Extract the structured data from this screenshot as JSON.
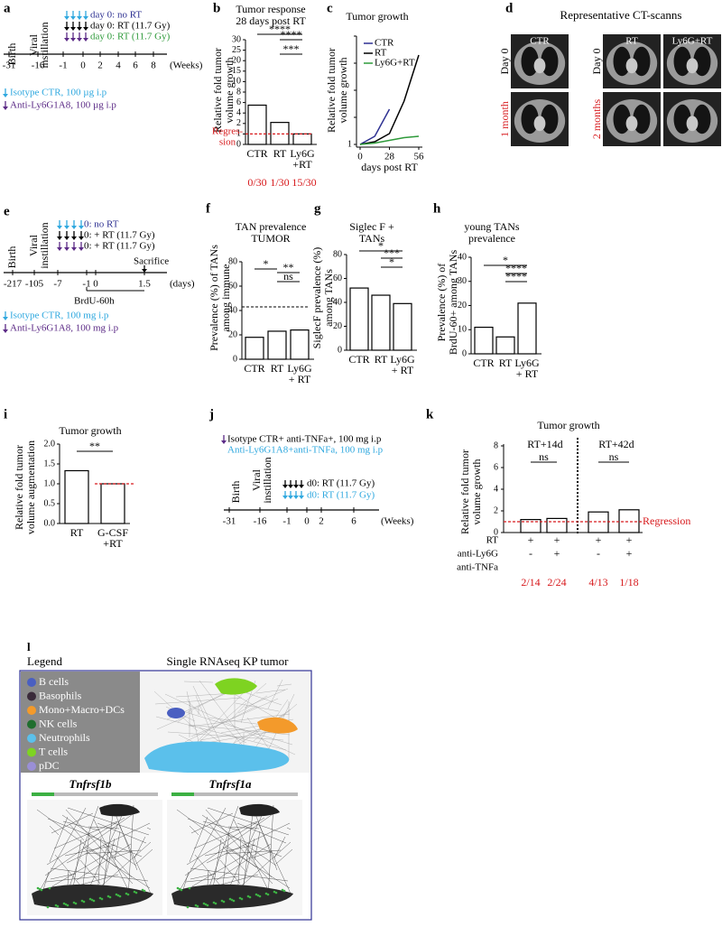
{
  "a": {
    "label": "a",
    "birth": "Birth",
    "viral": [
      "Viral",
      "instillation"
    ],
    "legend": [
      "day 0: no RT",
      "day 0: RT (11.7 Gy)",
      "day 0: RT (11.7 Gy)"
    ],
    "ticks": [
      "-31",
      "-16",
      "-1",
      "0",
      "2",
      "4",
      "6",
      "8"
    ],
    "unit": "(Weeks)",
    "treatments": [
      "Isotype CTR, 100 µg i.p",
      "Anti-Ly6G1A8, 100 µg i.p"
    ]
  },
  "b": {
    "label": "b",
    "title": [
      "Tumor response",
      "28 days post RT"
    ],
    "ylabel": [
      "Relative fold tumor",
      "volume growth"
    ],
    "yticks": [
      0,
      1,
      2,
      4,
      6,
      8,
      10,
      15,
      20,
      25,
      30
    ],
    "categories": [
      "CTR",
      "RT",
      [
        "Ly6G",
        "+RT"
      ]
    ],
    "values": [
      5.5,
      2.2,
      1.0
    ],
    "significance": [
      "****",
      "****",
      "***"
    ],
    "regression": [
      "Regres-",
      "sion"
    ],
    "responders": [
      "0/30",
      "1/30",
      "15/30"
    ]
  },
  "c": {
    "label": "c",
    "title": "Tumor growth",
    "ylabel": [
      "Relative fold tumor",
      "volume growth"
    ],
    "x": [
      0,
      14,
      28,
      42,
      56
    ],
    "xticks": [
      0,
      28,
      56
    ],
    "yticks": [
      1,
      2,
      3,
      4,
      5
    ],
    "xlabel": "days post RT",
    "series": [
      {
        "name": "CTR",
        "color": "#2e3192",
        "values": [
          1,
          1.3,
          2.3,
          null,
          null
        ]
      },
      {
        "name": "RT",
        "color": "#000000",
        "values": [
          1,
          1.1,
          1.4,
          2.6,
          4.3
        ]
      },
      {
        "name": "Ly6G+RT",
        "color": "#2e9a3a",
        "values": [
          1,
          1.05,
          1.15,
          1.25,
          1.3
        ]
      }
    ]
  },
  "d": {
    "label": "d",
    "title": "Representative CT-scanns",
    "groups": [
      "CTR",
      "RT",
      "Ly6G+RT"
    ],
    "rows_left": [
      "Day 0",
      "1 month"
    ],
    "rows_right": [
      "Day 0",
      "2 months"
    ]
  },
  "e": {
    "label": "e",
    "birth": "Birth",
    "viral": [
      "Viral",
      "instillation"
    ],
    "legend": [
      "0: no RT",
      "0: + RT (11.7 Gy)",
      "0: + RT (11.7 Gy)"
    ],
    "ticks": [
      "-217",
      "-105",
      "-7",
      "-1",
      "0",
      "1.5"
    ],
    "unit": "(days)",
    "sacrifice": "Sacrifice",
    "brdu": "BrdU-60h",
    "treatments": [
      "Isotype CTR, 100 mg i.p",
      "Anti-Ly6G1A8, 100 mg i.p"
    ]
  },
  "f": {
    "label": "f",
    "title": [
      "TAN prevalence",
      "TUMOR"
    ],
    "ylabel": [
      "Prevalence (%) of TANs",
      "among immune"
    ],
    "yticks": [
      0,
      20,
      40,
      60,
      80
    ],
    "categories": [
      "CTR",
      "RT",
      [
        "Ly6G",
        "+ RT"
      ]
    ],
    "values": [
      18,
      23,
      24
    ],
    "significance": [
      "*",
      "**",
      "ns"
    ]
  },
  "g": {
    "label": "g",
    "title": [
      "Siglec F +",
      "TANs"
    ],
    "ylabel": [
      "SiglecF prevalence (%)",
      "among TANs"
    ],
    "yticks": [
      0,
      20,
      40,
      60,
      80
    ],
    "categories": [
      "CTR",
      "RT",
      [
        "Ly6G",
        "+ RT"
      ]
    ],
    "values": [
      52,
      46,
      39
    ],
    "significance": [
      "*",
      "***",
      "*"
    ]
  },
  "h": {
    "label": "h",
    "title": [
      "young TANs",
      "prevalence"
    ],
    "ylabel": [
      "Prevalence (%) of",
      "BrdU-60+ among TANs"
    ],
    "yticks": [
      0,
      10,
      20,
      30,
      40
    ],
    "categories": [
      "CTR",
      "RT",
      [
        "Ly6G",
        "+ RT"
      ]
    ],
    "values": [
      11,
      7,
      21
    ],
    "significance": [
      "*",
      "****",
      "****"
    ]
  },
  "i": {
    "label": "i",
    "title": "Tumor growth",
    "ylabel": [
      "Relative fold tumor",
      "volume augmentation"
    ],
    "yticks": [
      {
        "value": 0,
        "label": "0.0"
      },
      {
        "value": 0.5,
        "label": "0.5"
      },
      {
        "value": 1,
        "label": "1.0"
      },
      {
        "value": 1.5,
        "label": "1.5"
      },
      {
        "value": 2,
        "label": "2.0"
      }
    ],
    "categories": [
      "RT",
      [
        "G-CSF",
        "+RT"
      ]
    ],
    "values": [
      1.33,
      1.0
    ],
    "significance": [
      "**"
    ]
  },
  "j": {
    "label": "j",
    "treatments": [
      "Isotype CTR+ anti-TNFa+, 100 mg i.p",
      "Anti-Ly6G1A8+anti-TNFa, 100 mg i.p"
    ],
    "birth": "Birth",
    "viral": [
      "Viral",
      "instillation"
    ],
    "legend": [
      "d0: RT (11.7 Gy)",
      "d0: RT (11.7 Gy)"
    ],
    "ticks": [
      "-31",
      "-16",
      "-1",
      "0",
      "2",
      "6"
    ],
    "unit": "(Weeks)"
  },
  "k": {
    "label": "k",
    "title": "Tumor growth",
    "ylabel": [
      "Relative fold tumor",
      "volume growth"
    ],
    "yticks": [
      0,
      2,
      4,
      6,
      8
    ],
    "groups": [
      "RT+14d",
      "RT+42d"
    ],
    "significance": [
      "ns",
      "ns"
    ],
    "regression": "Regression",
    "values": [
      1.2,
      1.3,
      1.9,
      2.1
    ],
    "rows": [
      "RT",
      "anti-Ly6G",
      "anti-TNFa"
    ],
    "signs": [
      [
        "+",
        "+",
        "+",
        "+"
      ],
      [
        "-",
        "+",
        "-",
        "+"
      ]
    ],
    "responders": [
      "2/14",
      "2/24",
      "4/13",
      "1/18"
    ]
  },
  "l": {
    "label": "l",
    "legend_title": "Legend",
    "title": "Single RNAseq KP tumor",
    "cell_types": [
      "B cells",
      "Basophils",
      "Mono+Macro+DCs",
      "NK cells",
      "Neutrophils",
      "T cells",
      "pDC"
    ],
    "genes": [
      "Tnfrsf1b",
      "Tnfrsf1a"
    ]
  }
}
